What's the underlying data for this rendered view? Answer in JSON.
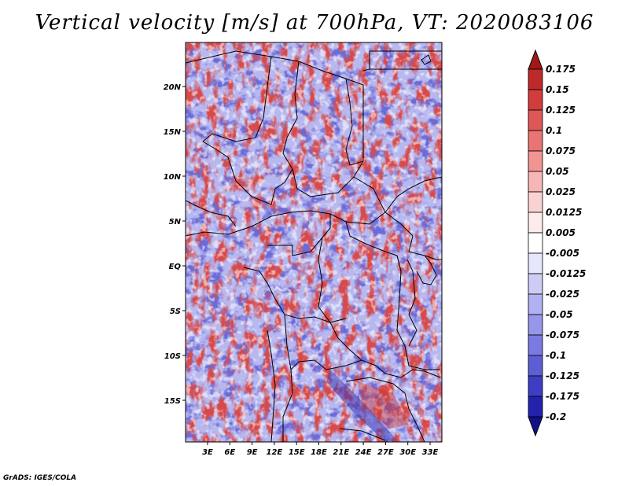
{
  "title": "Vertical velocity [m/s] at 700hPa, VT: 2020083106",
  "credit": "GrADS: IGES/COLA",
  "lat_labels": [
    "20N",
    "15N",
    "10N",
    "5N",
    "EQ",
    "5S",
    "10S",
    "15S"
  ],
  "lon_labels": [
    "3E",
    "6E",
    "9E",
    "12E",
    "15E",
    "18E",
    "21E",
    "24E",
    "27E",
    "30E",
    "33E"
  ],
  "colorbar": {
    "labels": [
      "0.175",
      "0.15",
      "0.125",
      "0.1",
      "0.075",
      "0.05",
      "0.025",
      "0.0125",
      "0.005",
      "-0.005",
      "-0.0125",
      "-0.025",
      "-0.05",
      "-0.075",
      "-0.1",
      "-0.125",
      "-0.175",
      "-0.2"
    ],
    "colors": [
      "#a01818",
      "#be2a2a",
      "#d13c3c",
      "#de5656",
      "#e87474",
      "#f19494",
      "#f7b6b6",
      "#fbd2d2",
      "#fdebeb",
      "#ffffff",
      "#e6e6fc",
      "#ccccf7",
      "#b1b1f2",
      "#9696ea",
      "#7a7ae0",
      "#5e5ed4",
      "#3e3ec4",
      "#2222ac",
      "#10108c"
    ]
  }
}
